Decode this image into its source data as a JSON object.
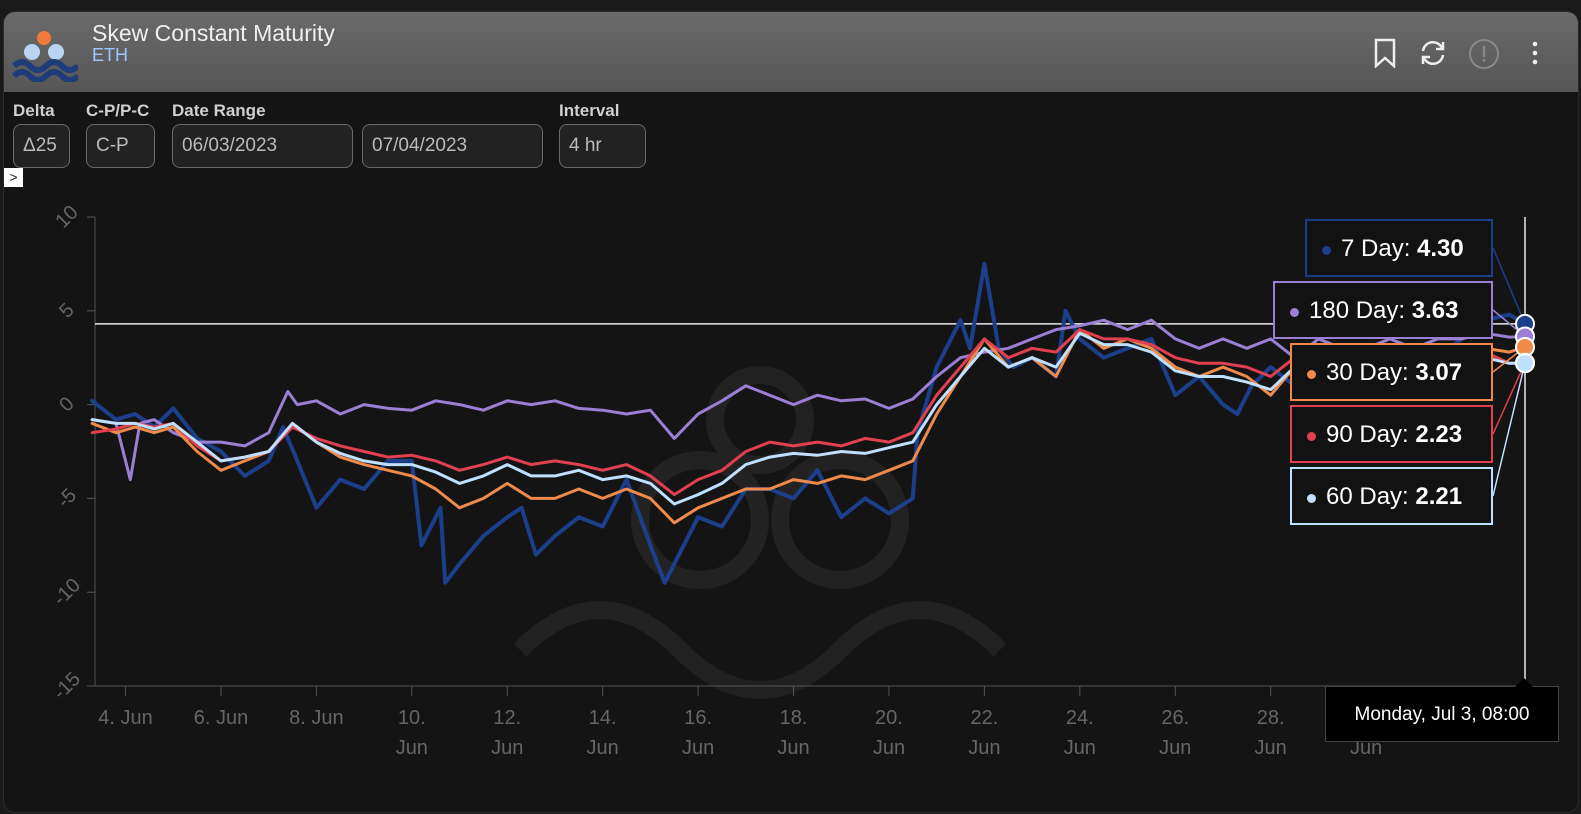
{
  "header": {
    "title": "Skew Constant Maturity",
    "subtitle": "ETH"
  },
  "controls": {
    "delta_label": "Delta",
    "delta_value": "Δ25",
    "cp_label": "C-P/P-C",
    "cp_value": "C-P",
    "range_label": "Date Range",
    "start_date": "06/03/2023",
    "end_date": "07/04/2023",
    "interval_label": "Interval",
    "interval_value": "4 hr"
  },
  "icons": {
    "bookmark": "bookmark-icon",
    "refresh": "refresh-icon",
    "info": "info-icon",
    "more": "more-vert-icon"
  },
  "tooltip": {
    "date": "Monday, Jul 3, 08:00",
    "items": [
      {
        "series": "7 Day",
        "label": "7 Day: ",
        "value": "4.30",
        "color": "#1b3f8b"
      },
      {
        "series": "180 Day",
        "label": "180 Day: ",
        "value": "3.63",
        "color": "#9b7fd4"
      },
      {
        "series": "30 Day",
        "label": "30 Day: ",
        "value": "3.07",
        "color": "#ef8a4a"
      },
      {
        "series": "90 Day",
        "label": "90 Day: ",
        "value": "2.23",
        "color": "#e0404f"
      },
      {
        "series": "60 Day",
        "label": "60 Day: ",
        "value": "2.21",
        "color": "#bfe0ff"
      }
    ]
  },
  "chart_data": {
    "type": "line",
    "ylim": [
      -15,
      10
    ],
    "yticks": [
      10,
      5,
      0,
      -5,
      -10,
      -15
    ],
    "yticklabels": [
      "10",
      "5",
      "0",
      "-5",
      "-10",
      "-15"
    ],
    "xticks": [
      {
        "day": 4,
        "line1": "4. Jun",
        "line2": ""
      },
      {
        "day": 6,
        "line1": "6. Jun",
        "line2": ""
      },
      {
        "day": 8,
        "line1": "8. Jun",
        "line2": ""
      },
      {
        "day": 10,
        "line1": "10.",
        "line2": "Jun"
      },
      {
        "day": 12,
        "line1": "12.",
        "line2": "Jun"
      },
      {
        "day": 14,
        "line1": "14.",
        "line2": "Jun"
      },
      {
        "day": 16,
        "line1": "16.",
        "line2": "Jun"
      },
      {
        "day": 18,
        "line1": "18.",
        "line2": "Jun"
      },
      {
        "day": 20,
        "line1": "20.",
        "line2": "Jun"
      },
      {
        "day": 22,
        "line1": "22.",
        "line2": "Jun"
      },
      {
        "day": 24,
        "line1": "24.",
        "line2": "Jun"
      },
      {
        "day": 26,
        "line1": "26.",
        "line2": "Jun"
      },
      {
        "day": 28,
        "line1": "28.",
        "line2": "Jun"
      },
      {
        "day": 30,
        "line1": "",
        "line2": "Jun"
      }
    ],
    "crosshair": {
      "x_day": 33.33,
      "y_value": 4.3
    },
    "series": [
      {
        "name": "7 Day",
        "color": "#1b3f8b",
        "width": 4,
        "x": [
          3.3,
          3.8,
          4.2,
          4.6,
          5.0,
          5.5,
          6.0,
          6.5,
          7.0,
          7.3,
          7.6,
          8.0,
          8.5,
          9.0,
          9.5,
          10.0,
          10.2,
          10.6,
          10.7,
          11.0,
          11.5,
          12.0,
          12.3,
          12.6,
          13.0,
          13.5,
          14.0,
          14.5,
          15.0,
          15.3,
          15.6,
          16.0,
          16.5,
          17.0,
          17.5,
          18.0,
          18.5,
          19.0,
          19.5,
          20.0,
          20.5,
          20.6,
          21.0,
          21.5,
          21.7,
          22.0,
          22.3,
          22.6,
          23.0,
          23.5,
          23.7,
          24.0,
          24.5,
          25.0,
          25.5,
          26.0,
          26.5,
          27.0,
          27.3,
          27.6,
          28.0,
          28.5,
          29.0,
          29.5,
          30.0,
          30.5,
          31.0,
          31.5,
          32.0,
          32.5,
          33.0,
          33.33
        ],
        "y": [
          0.2,
          -0.8,
          -0.5,
          -1.2,
          -0.2,
          -1.8,
          -2.5,
          -3.8,
          -3.0,
          -1.2,
          -3.0,
          -5.5,
          -4.0,
          -4.5,
          -3.0,
          -3.0,
          -7.5,
          -5.5,
          -9.5,
          -8.5,
          -7.0,
          -6.0,
          -5.5,
          -8.0,
          -7.0,
          -6.0,
          -6.5,
          -4.0,
          -7.5,
          -9.5,
          -8.0,
          -6.0,
          -6.5,
          -4.5,
          -4.5,
          -5.0,
          -3.5,
          -6.0,
          -5.0,
          -5.8,
          -5.0,
          -1.5,
          2.0,
          4.5,
          3.0,
          7.5,
          3.0,
          2.0,
          2.5,
          1.5,
          5.0,
          3.5,
          2.5,
          3.0,
          3.5,
          0.5,
          1.5,
          0.0,
          -0.5,
          1.0,
          2.0,
          1.0,
          0.5,
          1.5,
          2.0,
          0.5,
          3.0,
          2.5,
          3.5,
          4.5,
          4.8,
          4.3
        ]
      },
      {
        "name": "180 Day",
        "color": "#9b7fd4",
        "width": 3,
        "x": [
          3.3,
          3.8,
          4.1,
          4.3,
          4.6,
          5.0,
          5.5,
          6.0,
          6.5,
          7.0,
          7.4,
          7.6,
          8.0,
          8.5,
          9.0,
          9.5,
          10.0,
          10.5,
          11.0,
          11.5,
          12.0,
          12.5,
          13.0,
          13.5,
          14.0,
          14.5,
          15.0,
          15.5,
          16.0,
          16.5,
          17.0,
          17.5,
          18.0,
          18.5,
          19.0,
          19.5,
          20.0,
          20.5,
          21.0,
          21.5,
          22.0,
          22.5,
          23.0,
          23.5,
          24.0,
          24.5,
          25.0,
          25.5,
          26.0,
          26.5,
          27.0,
          27.5,
          28.0,
          28.5,
          29.0,
          29.5,
          30.0,
          30.5,
          31.0,
          31.5,
          32.0,
          32.5,
          33.0,
          33.33
        ],
        "y": [
          -0.8,
          -1.0,
          -4.0,
          -1.0,
          -0.8,
          -1.5,
          -2.0,
          -2.0,
          -2.2,
          -1.5,
          0.7,
          0.0,
          0.2,
          -0.5,
          0.0,
          -0.2,
          -0.3,
          0.2,
          0.0,
          -0.3,
          0.2,
          0.0,
          0.2,
          -0.2,
          -0.3,
          -0.5,
          -0.3,
          -1.8,
          -0.5,
          0.2,
          1.0,
          0.5,
          0.0,
          0.5,
          0.2,
          0.3,
          -0.2,
          0.3,
          1.5,
          2.5,
          2.8,
          3.0,
          3.5,
          4.0,
          4.2,
          4.5,
          4.0,
          4.5,
          3.5,
          3.0,
          3.5,
          3.0,
          3.5,
          2.5,
          3.5,
          3.0,
          3.0,
          3.5,
          3.0,
          3.5,
          3.5,
          3.8,
          3.6,
          3.63
        ]
      },
      {
        "name": "30 Day",
        "color": "#ef8a4a",
        "width": 3,
        "x": [
          3.3,
          3.8,
          4.2,
          4.6,
          5.0,
          5.5,
          6.0,
          6.5,
          7.0,
          7.5,
          8.0,
          8.5,
          9.0,
          9.5,
          10.0,
          10.5,
          11.0,
          11.5,
          12.0,
          12.5,
          13.0,
          13.5,
          14.0,
          14.5,
          15.0,
          15.5,
          16.0,
          16.5,
          17.0,
          17.5,
          18.0,
          18.5,
          19.0,
          19.5,
          20.0,
          20.5,
          21.0,
          21.5,
          22.0,
          22.5,
          23.0,
          23.5,
          24.0,
          24.5,
          25.0,
          25.5,
          26.0,
          26.5,
          27.0,
          27.5,
          28.0,
          28.5,
          29.0,
          29.5,
          30.0,
          30.5,
          31.0,
          31.5,
          32.0,
          32.5,
          33.0,
          33.33
        ],
        "y": [
          -1.0,
          -1.5,
          -1.2,
          -1.5,
          -1.2,
          -2.5,
          -3.5,
          -3.0,
          -2.5,
          -1.0,
          -2.0,
          -2.8,
          -3.2,
          -3.5,
          -3.8,
          -4.5,
          -5.5,
          -5.0,
          -4.2,
          -5.0,
          -5.0,
          -4.5,
          -5.0,
          -4.5,
          -5.0,
          -6.3,
          -5.5,
          -5.0,
          -4.5,
          -4.5,
          -4.0,
          -4.2,
          -3.8,
          -4.0,
          -3.5,
          -3.0,
          -0.5,
          1.5,
          3.5,
          2.0,
          2.5,
          1.5,
          4.0,
          3.0,
          3.5,
          3.0,
          2.0,
          1.5,
          2.0,
          1.5,
          0.5,
          2.0,
          1.0,
          2.0,
          1.0,
          1.5,
          2.0,
          2.5,
          2.5,
          3.0,
          2.8,
          3.07
        ]
      },
      {
        "name": "90 Day",
        "color": "#e0404f",
        "width": 3,
        "x": [
          3.3,
          3.8,
          4.2,
          4.6,
          5.0,
          5.5,
          6.0,
          6.5,
          7.0,
          7.5,
          8.0,
          8.5,
          9.0,
          9.5,
          10.0,
          10.5,
          11.0,
          11.5,
          12.0,
          12.5,
          13.0,
          13.5,
          14.0,
          14.5,
          15.0,
          15.5,
          16.0,
          16.5,
          17.0,
          17.5,
          18.0,
          18.5,
          19.0,
          19.5,
          20.0,
          20.5,
          21.0,
          21.5,
          22.0,
          22.5,
          23.0,
          23.5,
          24.0,
          24.5,
          25.0,
          25.5,
          26.0,
          26.5,
          27.0,
          27.5,
          28.0,
          28.5,
          29.0,
          29.5,
          30.0,
          30.5,
          31.0,
          31.5,
          32.0,
          32.5,
          33.0,
          33.33
        ],
        "y": [
          -1.5,
          -1.3,
          -1.0,
          -1.2,
          -1.0,
          -2.2,
          -3.0,
          -2.8,
          -2.5,
          -1.2,
          -1.8,
          -2.2,
          -2.5,
          -2.8,
          -2.7,
          -3.0,
          -3.5,
          -3.2,
          -2.8,
          -3.2,
          -3.0,
          -3.2,
          -3.5,
          -3.2,
          -3.8,
          -4.8,
          -4.0,
          -3.5,
          -2.5,
          -2.0,
          -2.2,
          -2.0,
          -2.2,
          -1.8,
          -2.0,
          -1.5,
          0.5,
          2.0,
          3.5,
          2.5,
          3.0,
          2.8,
          4.0,
          3.5,
          3.5,
          3.2,
          2.5,
          2.2,
          2.2,
          2.0,
          1.5,
          2.5,
          1.8,
          2.5,
          1.8,
          2.0,
          2.5,
          2.2,
          2.5,
          2.8,
          2.2,
          2.23
        ]
      },
      {
        "name": "60 Day",
        "color": "#bfe0ff",
        "width": 3,
        "x": [
          3.3,
          3.8,
          4.2,
          4.6,
          5.0,
          5.5,
          6.0,
          6.5,
          7.0,
          7.5,
          8.0,
          8.5,
          9.0,
          9.5,
          10.0,
          10.5,
          11.0,
          11.5,
          12.0,
          12.5,
          13.0,
          13.5,
          14.0,
          14.5,
          15.0,
          15.5,
          16.0,
          16.5,
          17.0,
          17.5,
          18.0,
          18.5,
          19.0,
          19.5,
          20.0,
          20.5,
          21.0,
          21.5,
          22.0,
          22.5,
          23.0,
          23.5,
          24.0,
          24.5,
          25.0,
          25.5,
          26.0,
          26.5,
          27.0,
          27.5,
          28.0,
          28.5,
          29.0,
          29.5,
          30.0,
          30.5,
          31.0,
          31.5,
          32.0,
          32.5,
          33.0,
          33.33
        ],
        "y": [
          -0.8,
          -1.0,
          -1.0,
          -1.3,
          -1.0,
          -2.0,
          -3.0,
          -2.8,
          -2.5,
          -1.0,
          -2.0,
          -2.6,
          -3.0,
          -3.2,
          -3.2,
          -3.6,
          -4.2,
          -3.8,
          -3.2,
          -3.8,
          -3.8,
          -3.5,
          -4.0,
          -3.8,
          -4.2,
          -5.3,
          -4.8,
          -4.2,
          -3.2,
          -2.8,
          -2.6,
          -2.7,
          -2.5,
          -2.6,
          -2.3,
          -2.0,
          0.0,
          1.5,
          3.0,
          2.0,
          2.5,
          2.0,
          3.8,
          3.2,
          3.2,
          2.8,
          1.8,
          1.5,
          1.5,
          1.2,
          0.8,
          2.0,
          1.3,
          2.0,
          1.2,
          1.5,
          2.0,
          2.2,
          2.2,
          2.5,
          2.2,
          2.21
        ]
      }
    ]
  }
}
